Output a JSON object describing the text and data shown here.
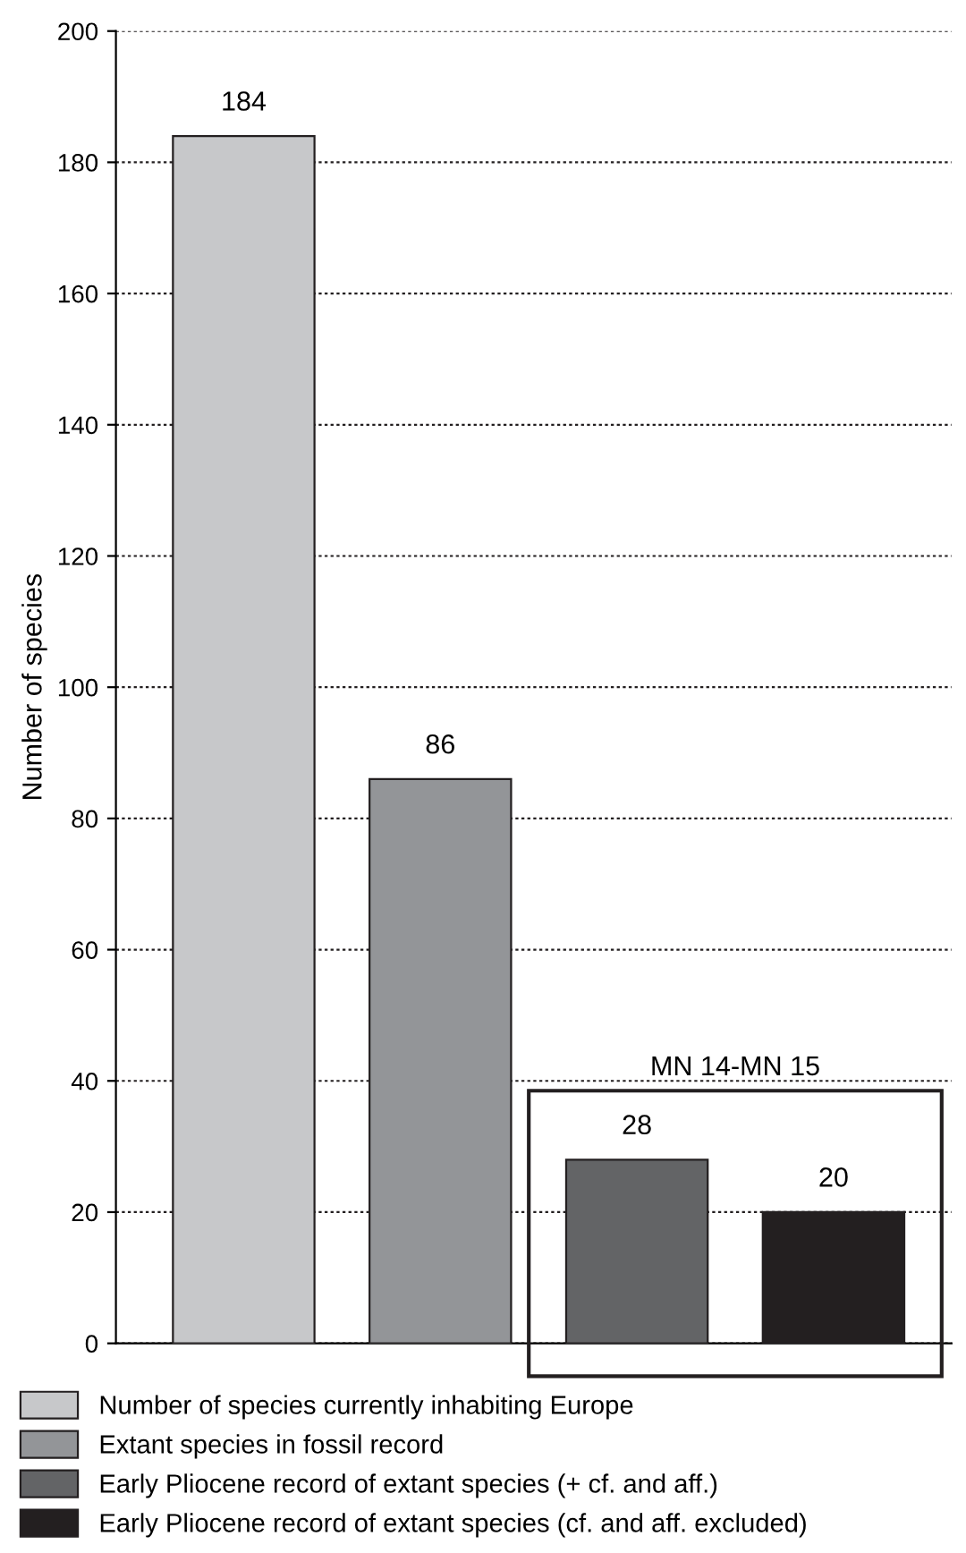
{
  "chart_data": {
    "type": "bar",
    "ylabel": "Number of species",
    "categories": [
      null,
      null,
      null,
      null
    ],
    "series": [
      {
        "name": "Number of species currently inhabiting Europe",
        "color": "#c7c8ca",
        "values": [
          184,
          null,
          null,
          null
        ]
      },
      {
        "name": "Extant species in fossil record",
        "color": "#939598",
        "values": [
          null,
          86,
          null,
          null
        ]
      },
      {
        "name": "Early Pliocene record of extant species (+ cf. and aff.)",
        "color": "#636466",
        "values": [
          null,
          null,
          28,
          null
        ]
      },
      {
        "name": "Early Pliocene record of extant species (cf. and aff. excluded)",
        "color": "#231f20",
        "values": [
          null,
          null,
          null,
          20
        ]
      }
    ],
    "ylim": [
      0,
      200
    ],
    "yticks": [
      0,
      20,
      40,
      60,
      80,
      100,
      120,
      140,
      160,
      180,
      200
    ],
    "grid": "y",
    "legend": "bottom",
    "data_labels": true,
    "annotations": [
      "MN 14-MN 15"
    ]
  }
}
